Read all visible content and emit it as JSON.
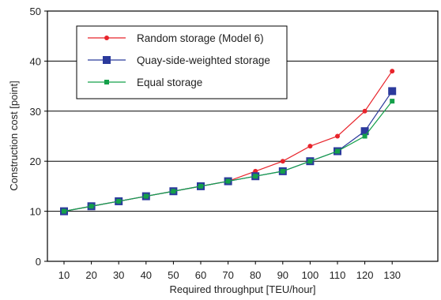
{
  "chart_data": {
    "type": "line",
    "xlabel": "Required throughput [TEU/hour]",
    "ylabel": "Construction cost [point]",
    "x": [
      10,
      20,
      30,
      40,
      50,
      60,
      70,
      80,
      90,
      100,
      110,
      120,
      130
    ],
    "xlim": [
      10,
      130
    ],
    "ylim": [
      0,
      50
    ],
    "yticks": [
      0,
      10,
      20,
      30,
      40,
      50
    ],
    "grid": "horizontal",
    "legend_position": "top-left",
    "series": [
      {
        "name": "Random storage (Model 6)",
        "color": "#e8242b",
        "marker": "circle",
        "values": [
          10,
          11,
          12,
          13,
          14,
          15,
          16,
          18,
          20,
          23,
          25,
          30,
          38
        ]
      },
      {
        "name": "Quay-side-weighted storage",
        "color": "#2b3a9c",
        "marker": "square-large",
        "values": [
          10,
          11,
          12,
          13,
          14,
          15,
          16,
          17,
          18,
          20,
          22,
          26,
          34
        ]
      },
      {
        "name": "Equal storage",
        "color": "#14a04a",
        "marker": "square-small",
        "values": [
          10,
          11,
          12,
          13,
          14,
          15,
          16,
          17,
          18,
          20,
          22,
          25,
          32
        ]
      }
    ]
  }
}
